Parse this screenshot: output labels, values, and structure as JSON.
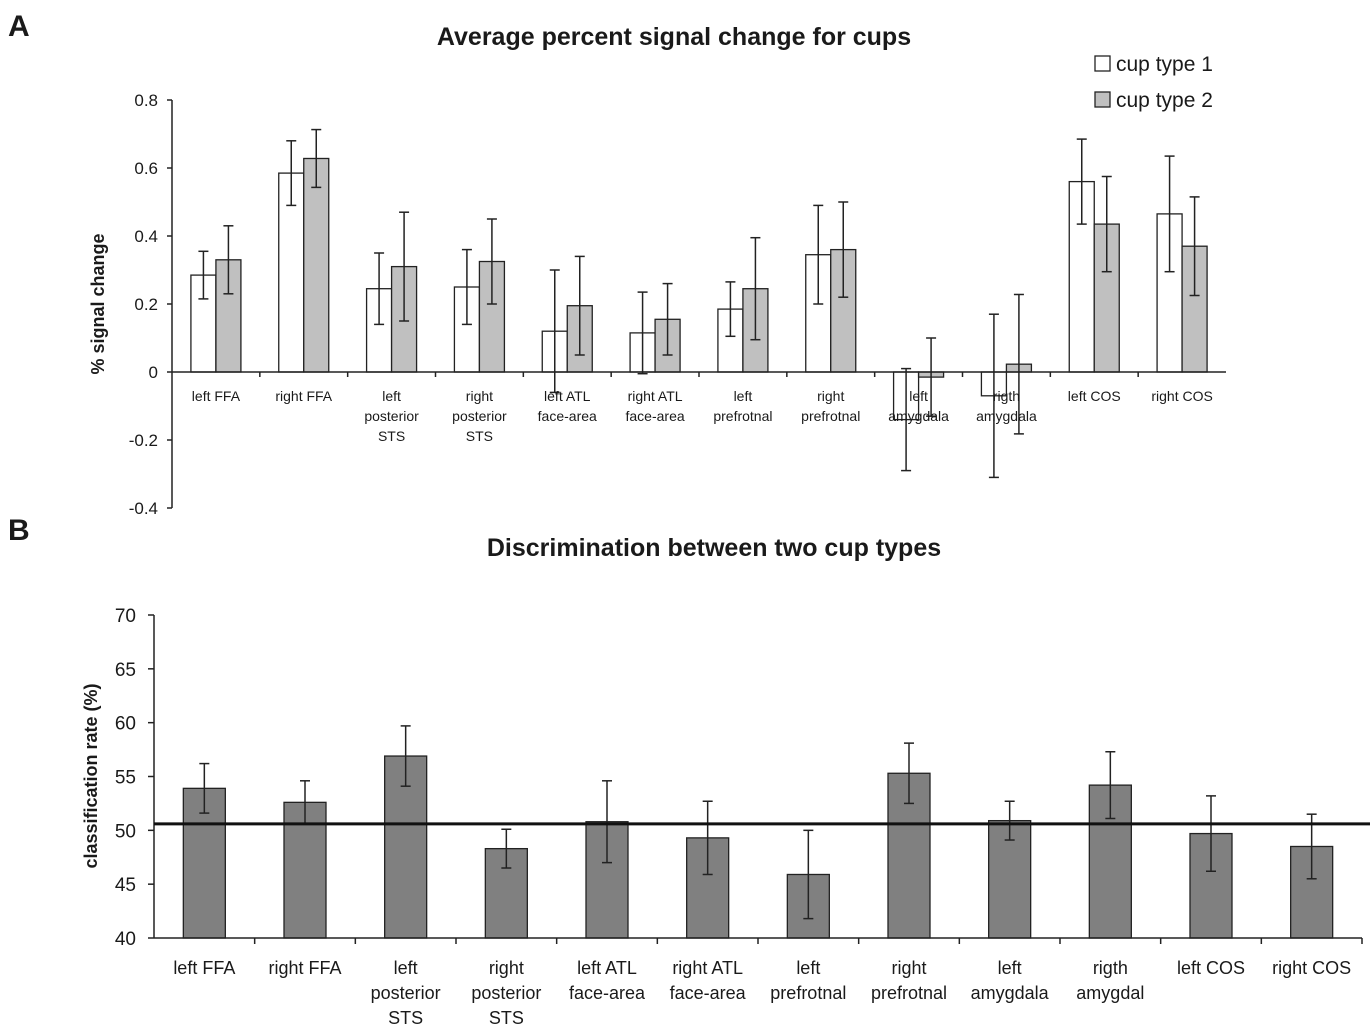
{
  "chart_data": [
    {
      "panel": "A",
      "type": "bar",
      "title": "Average percent signal change for cups",
      "xlabel": "",
      "ylabel": "% signal change",
      "ylim": [
        -0.4,
        0.8
      ],
      "yticks": [
        0.8,
        0.6,
        0.4,
        0.2,
        0,
        -0.2,
        -0.4
      ],
      "ytick_labels": [
        "0.8",
        "0.6",
        "0.4",
        "0.2",
        "0",
        "-0.2",
        "-0.4"
      ],
      "grid": false,
      "legend_position": "top-right",
      "categories": [
        [
          "left FFA"
        ],
        [
          "right FFA"
        ],
        [
          "left",
          "posterior",
          "STS"
        ],
        [
          "right",
          "posterior",
          "STS"
        ],
        [
          "left ATL",
          "face-area"
        ],
        [
          "right ATL",
          "face-area"
        ],
        [
          "left",
          "prefrotnal"
        ],
        [
          "right",
          "prefrotnal"
        ],
        [
          "left",
          "amygdala"
        ],
        [
          "rigth",
          "amygdala"
        ],
        [
          "left COS"
        ],
        [
          "right COS"
        ]
      ],
      "series": [
        {
          "name": "cup type 1",
          "color": "#ffffff",
          "values": [
            0.285,
            0.585,
            0.245,
            0.25,
            0.12,
            0.115,
            0.185,
            0.345,
            -0.14,
            -0.07,
            0.56,
            0.465
          ],
          "errors": [
            0.07,
            0.095,
            0.105,
            0.11,
            0.18,
            0.12,
            0.08,
            0.145,
            0.15,
            0.24,
            0.125,
            0.17
          ]
        },
        {
          "name": "cup type 2",
          "color": "#c0c0c0",
          "values": [
            0.33,
            0.628,
            0.31,
            0.325,
            0.195,
            0.155,
            0.245,
            0.36,
            -0.015,
            0.023,
            0.435,
            0.37
          ],
          "errors": [
            0.1,
            0.085,
            0.16,
            0.125,
            0.145,
            0.105,
            0.15,
            0.14,
            0.115,
            0.205,
            0.14,
            0.145
          ]
        }
      ]
    },
    {
      "panel": "B",
      "type": "bar",
      "title": "Discrimination between two cup types",
      "xlabel": "",
      "ylabel": "classification rate (%)",
      "ylim": [
        40,
        70
      ],
      "yticks": [
        70,
        65,
        60,
        55,
        50,
        45,
        40
      ],
      "ytick_labels": [
        "70",
        "65",
        "60",
        "55",
        "50",
        "45",
        "40"
      ],
      "grid": false,
      "reference_line": 50.6,
      "categories": [
        [
          "left FFA"
        ],
        [
          "right FFA"
        ],
        [
          "left",
          "posterior",
          "STS"
        ],
        [
          "right",
          "posterior",
          "STS"
        ],
        [
          "left ATL",
          "face-area"
        ],
        [
          "right ATL",
          "face-area"
        ],
        [
          "left",
          "prefrotnal"
        ],
        [
          "right",
          "prefrotnal"
        ],
        [
          "left",
          "amygdala"
        ],
        [
          "rigth",
          "amygdal"
        ],
        [
          "left COS"
        ],
        [
          "right COS"
        ]
      ],
      "series": [
        {
          "color": "#808080",
          "values": [
            53.9,
            52.6,
            56.9,
            48.3,
            50.8,
            49.3,
            45.9,
            55.3,
            50.9,
            54.2,
            49.7,
            48.5
          ],
          "errors": [
            2.3,
            2.0,
            2.8,
            1.8,
            3.8,
            3.4,
            4.1,
            2.8,
            1.8,
            3.1,
            3.5,
            3.0
          ]
        }
      ]
    }
  ],
  "panel_labels": [
    "A",
    "B"
  ]
}
